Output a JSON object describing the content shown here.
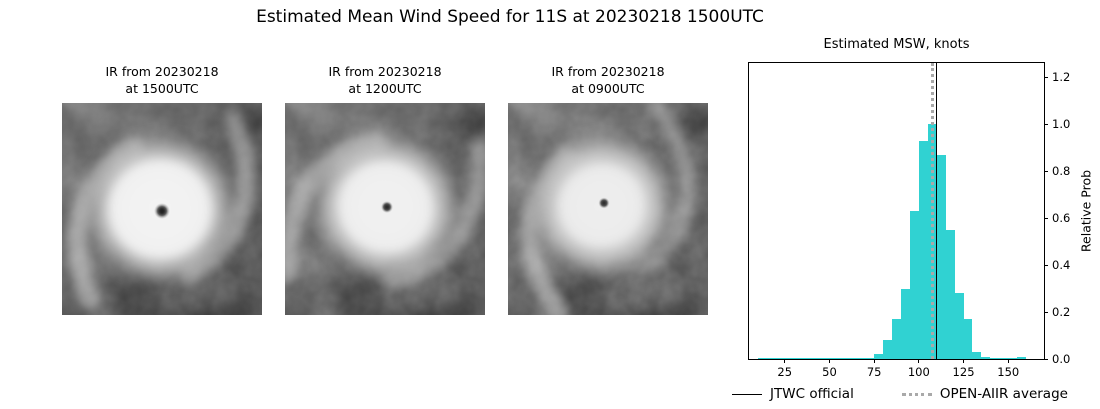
{
  "title": "Estimated Mean Wind Speed for 11S at 20230218 1500UTC",
  "panels": [
    {
      "caption_line1": "IR from 20230218",
      "caption_line2": "at 1500UTC"
    },
    {
      "caption_line1": "IR from 20230218",
      "caption_line2": "at 1200UTC"
    },
    {
      "caption_line1": "IR from 20230218",
      "caption_line2": "at 0900UTC"
    }
  ],
  "chart_data": {
    "type": "bar",
    "title": "Estimated MSW, knots",
    "ylabel": "Relative Prob",
    "bar_color": "#30d2d2",
    "xlim": [
      5,
      170
    ],
    "ylim": [
      0,
      1.26
    ],
    "xticks": [
      25,
      50,
      75,
      100,
      125,
      150
    ],
    "yticks": [
      0.0,
      0.2,
      0.4,
      0.6,
      0.8,
      1.0,
      1.2
    ],
    "bins_start": 10,
    "bin_width": 5,
    "values": [
      0.005,
      0.005,
      0.005,
      0.005,
      0.005,
      0.005,
      0.005,
      0.005,
      0.005,
      0.005,
      0.005,
      0.005,
      0.005,
      0.02,
      0.08,
      0.17,
      0.3,
      0.63,
      0.93,
      1.0,
      0.87,
      0.55,
      0.28,
      0.17,
      0.03,
      0.01,
      0.005,
      0.005,
      0.005,
      0.01
    ],
    "lines": [
      {
        "name": "OPEN-AIIR average",
        "x": 107.5,
        "style": "dotted",
        "color": "#a9a9a9",
        "width": 3.5
      },
      {
        "name": "JTWC official",
        "x": 110,
        "style": "solid",
        "color": "#000000",
        "width": 1.6
      }
    ],
    "legend": [
      {
        "label": "JTWC official",
        "style": "solid",
        "color": "#000000"
      },
      {
        "label": "OPEN-AIIR average",
        "style": "dotted",
        "color": "#a9a9a9"
      }
    ]
  }
}
